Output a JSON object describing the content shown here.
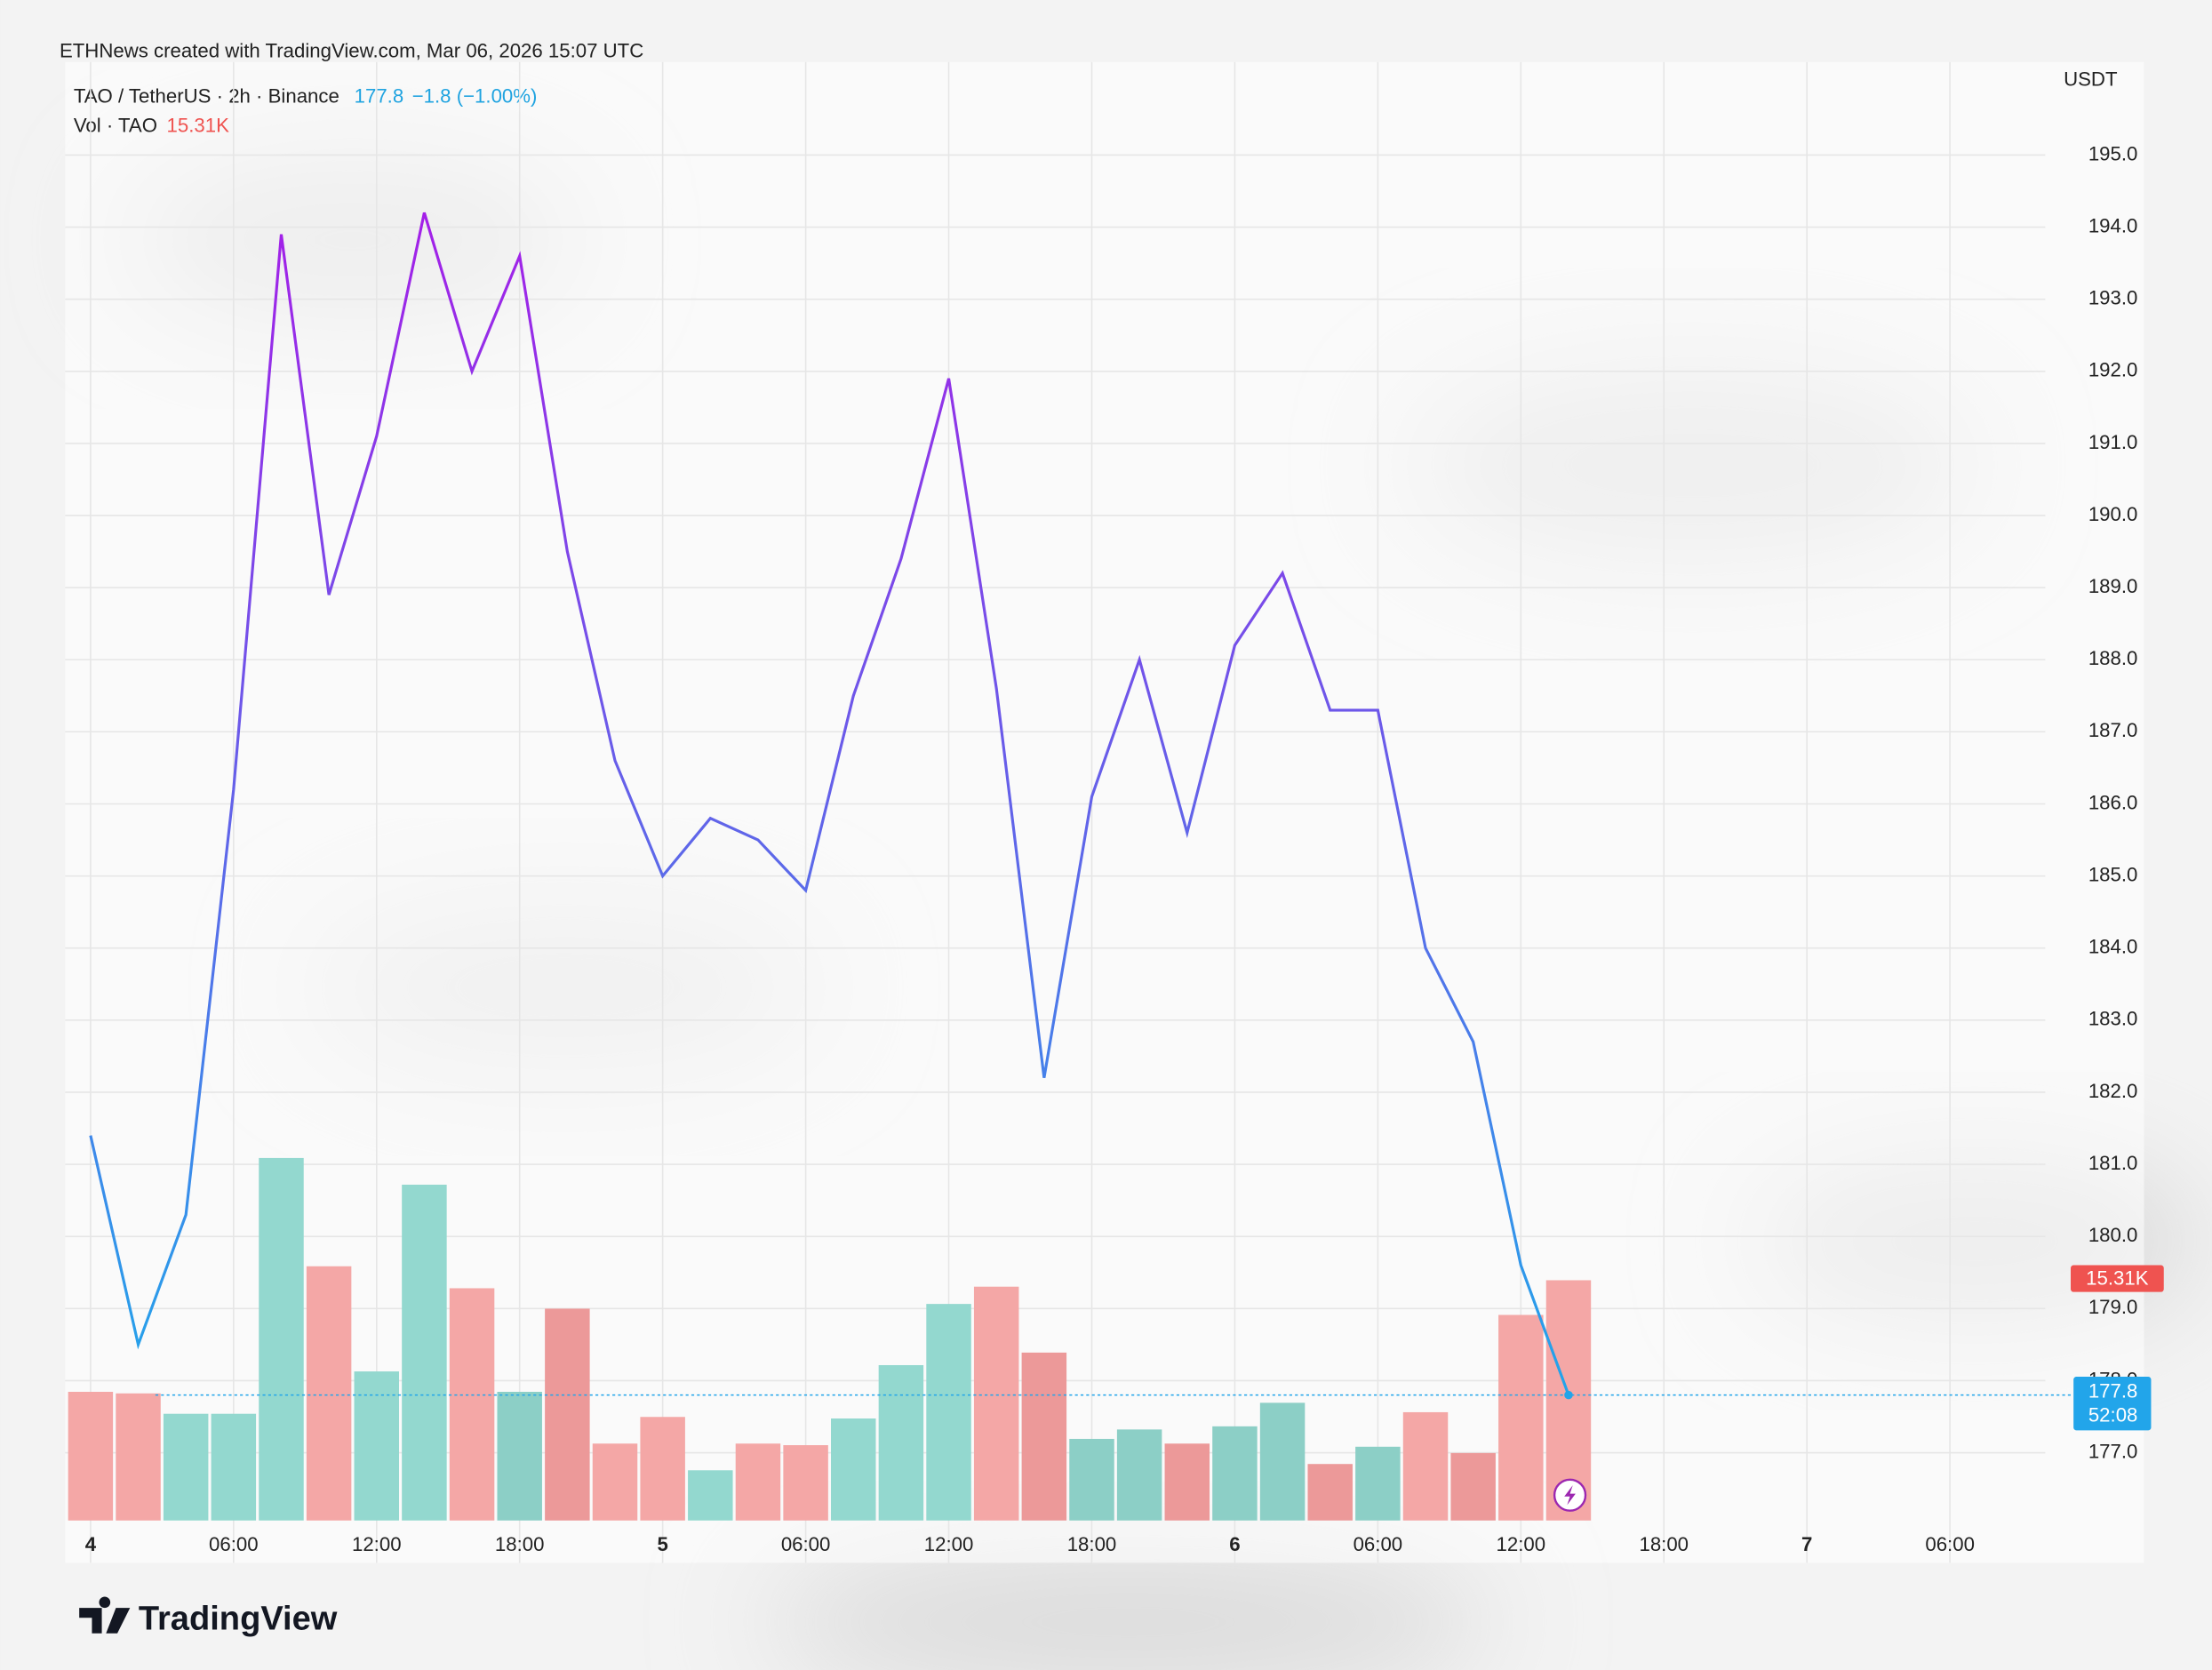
{
  "chart_data": {
    "type": "line",
    "watermark": "ETHNews created with TradingView.com, Mar 06, 2026 15:07 UTC",
    "change": "−1.8 (−1.00%)",
    "y_unit": "USDT",
    "countdown": "52:08",
    "brand": "TradingView",
    "grid": true,
    "x": [
      0,
      2,
      4,
      6,
      8,
      10,
      12,
      14,
      16,
      18,
      20,
      22,
      24,
      26,
      28,
      30,
      32,
      34,
      36,
      38,
      40,
      42,
      44,
      46,
      48,
      50,
      52,
      54,
      56,
      58,
      60,
      62
    ],
    "xlim": [
      -0.77,
      82
    ],
    "xticks": [
      {
        "value": 0,
        "label": "4"
      },
      {
        "value": 6,
        "label": "06:00"
      },
      {
        "value": 12,
        "label": "12:00"
      },
      {
        "value": 18,
        "label": "18:00"
      },
      {
        "value": 24,
        "label": "5"
      },
      {
        "value": 30,
        "label": "06:00"
      },
      {
        "value": 36,
        "label": "12:00"
      },
      {
        "value": 42,
        "label": "18:00"
      },
      {
        "value": 48,
        "label": "6"
      },
      {
        "value": 54,
        "label": "06:00"
      },
      {
        "value": 60,
        "label": "12:00"
      },
      {
        "value": 66,
        "label": "18:00"
      },
      {
        "value": 72,
        "label": "7"
      },
      {
        "value": 78,
        "label": "06:00"
      }
    ],
    "ylim": [
      176.06,
      196.29
    ],
    "yticks": [
      {
        "value": 177,
        "label": "177.0"
      },
      {
        "value": 178,
        "label": "178.0"
      },
      {
        "value": 179,
        "label": "179.0"
      },
      {
        "value": 180,
        "label": "180.0"
      },
      {
        "value": 181,
        "label": "181.0"
      },
      {
        "value": 182,
        "label": "182.0"
      },
      {
        "value": 183,
        "label": "183.0"
      },
      {
        "value": 184,
        "label": "184.0"
      },
      {
        "value": 185,
        "label": "185.0"
      },
      {
        "value": 186,
        "label": "186.0"
      },
      {
        "value": 187,
        "label": "187.0"
      },
      {
        "value": 188,
        "label": "188.0"
      },
      {
        "value": 189,
        "label": "189.0"
      },
      {
        "value": 190,
        "label": "190.0"
      },
      {
        "value": 191,
        "label": "191.0"
      },
      {
        "value": 192,
        "label": "192.0"
      },
      {
        "value": 193,
        "label": "193.0"
      },
      {
        "value": 194,
        "label": "194.0"
      },
      {
        "value": 195,
        "label": "195.0"
      }
    ],
    "series": [
      {
        "name": "TAO / TetherUS · 2h · Binance",
        "colors": [
          "#a41fe8",
          "#22a5ea"
        ],
        "values": [
          181.4,
          178.5,
          180.3,
          186.2,
          193.9,
          188.9,
          191.1,
          194.2,
          192.0,
          193.6,
          189.5,
          186.6,
          185.0,
          185.8,
          185.5,
          184.8,
          187.5,
          189.4,
          191.9,
          187.6,
          182.2,
          186.1,
          188.0,
          185.6,
          188.2,
          189.2,
          187.3,
          187.3,
          184.0,
          182.7,
          179.6,
          177.8
        ]
      },
      {
        "name": "Vol · TAO",
        "type": "bar",
        "axis": "volume",
        "values": [
          8.2,
          8.1,
          6.8,
          6.8,
          23.1,
          16.2,
          9.5,
          21.4,
          14.8,
          8.2,
          13.5,
          4.9,
          6.6,
          3.2,
          4.9,
          4.8,
          6.5,
          9.9,
          13.8,
          14.9,
          10.7,
          5.2,
          5.8,
          4.9,
          6.0,
          7.5,
          3.6,
          4.7,
          6.9,
          4.3,
          13.1,
          15.31
        ],
        "value_labels": [
          null,
          null,
          null,
          null,
          null,
          null,
          null,
          null,
          null,
          null,
          null,
          null,
          null,
          null,
          null,
          null,
          null,
          null,
          null,
          null,
          null,
          null,
          null,
          null,
          null,
          null,
          null,
          null,
          null,
          null,
          null,
          "15.31K"
        ],
        "colors": [
          "#f4a7a6",
          "#f4a7a6",
          "#93d8cf",
          "#93d8cf",
          "#93d8cf",
          "#f4a7a6",
          "#93d8cf",
          "#93d8cf",
          "#f4a7a6",
          "#8ccfc6",
          "#ec9999",
          "#f4a7a6",
          "#f4a7a6",
          "#93d8cf",
          "#f4a7a6",
          "#f4a7a6",
          "#93d8cf",
          "#93d8cf",
          "#93d8cf",
          "#f4a7a6",
          "#ec9999",
          "#8ccfc6",
          "#8ccfc6",
          "#ec9999",
          "#8ccfc6",
          "#8ccfc6",
          "#ec9999",
          "#8ccfc6",
          "#f4a7a6",
          "#ec9999",
          "#f4a7a6",
          "#f4a7a6"
        ]
      }
    ]
  }
}
